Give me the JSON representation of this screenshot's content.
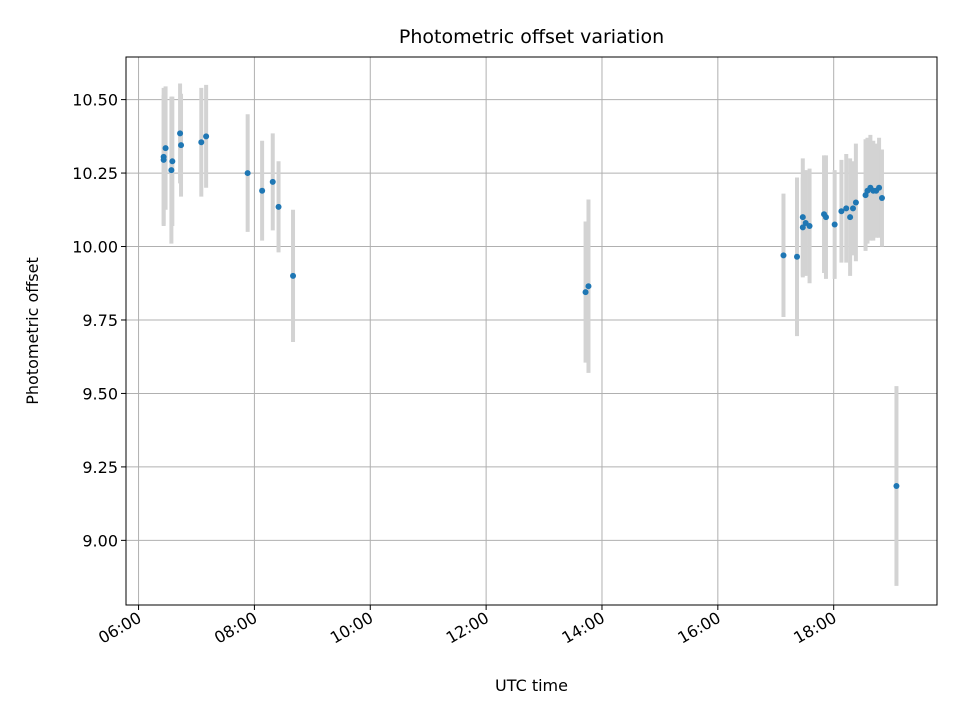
{
  "chart_data": {
    "type": "scatter",
    "title": "Photometric offset variation",
    "xlabel": "UTC time",
    "ylabel": "Photometric offset",
    "xlim": [
      "05:47",
      "19:47"
    ],
    "ylim": [
      8.78,
      10.645
    ],
    "grid": true,
    "x_ticks": [
      "06:00",
      "08:00",
      "10:00",
      "12:00",
      "14:00",
      "16:00",
      "18:00"
    ],
    "y_ticks": [
      "9.00",
      "9.25",
      "9.50",
      "9.75",
      "10.00",
      "10.25",
      "10.50"
    ],
    "colors": {
      "point": "#1f77b4",
      "errorbar": "#d3d3d3",
      "grid": "#b0b0b0"
    },
    "points": [
      {
        "x": "06:26",
        "y": 10.305,
        "err": 0.235
      },
      {
        "x": "06:26",
        "y": 10.295,
        "err": 0.22
      },
      {
        "x": "06:28",
        "y": 10.335,
        "err": 0.21
      },
      {
        "x": "06:34",
        "y": 10.26,
        "err": 0.25
      },
      {
        "x": "06:35",
        "y": 10.29,
        "err": 0.22
      },
      {
        "x": "06:43",
        "y": 10.385,
        "err": 0.17
      },
      {
        "x": "06:44",
        "y": 10.345,
        "err": 0.175
      },
      {
        "x": "07:05",
        "y": 10.355,
        "err": 0.185
      },
      {
        "x": "07:10",
        "y": 10.375,
        "err": 0.175
      },
      {
        "x": "07:53",
        "y": 10.25,
        "err": 0.2
      },
      {
        "x": "08:08",
        "y": 10.19,
        "err": 0.17
      },
      {
        "x": "08:19",
        "y": 10.22,
        "err": 0.165
      },
      {
        "x": "08:25",
        "y": 10.135,
        "err": 0.155
      },
      {
        "x": "08:40",
        "y": 9.9,
        "err": 0.225
      },
      {
        "x": "13:43",
        "y": 9.845,
        "err": 0.24
      },
      {
        "x": "13:46",
        "y": 9.865,
        "err": 0.295
      },
      {
        "x": "17:08",
        "y": 9.97,
        "err": 0.21
      },
      {
        "x": "17:22",
        "y": 9.965,
        "err": 0.27
      },
      {
        "x": "17:28",
        "y": 10.1,
        "err": 0.2
      },
      {
        "x": "17:28",
        "y": 10.065,
        "err": 0.17
      },
      {
        "x": "17:31",
        "y": 10.08,
        "err": 0.18
      },
      {
        "x": "17:35",
        "y": 10.07,
        "err": 0.195
      },
      {
        "x": "17:50",
        "y": 10.11,
        "err": 0.2
      },
      {
        "x": "17:52",
        "y": 10.1,
        "err": 0.21
      },
      {
        "x": "18:01",
        "y": 10.075,
        "err": 0.185
      },
      {
        "x": "18:08",
        "y": 10.12,
        "err": 0.175
      },
      {
        "x": "18:13",
        "y": 10.13,
        "err": 0.185
      },
      {
        "x": "18:17",
        "y": 10.1,
        "err": 0.2
      },
      {
        "x": "18:20",
        "y": 10.13,
        "err": 0.16
      },
      {
        "x": "18:23",
        "y": 10.15,
        "err": 0.2
      },
      {
        "x": "18:33",
        "y": 10.175,
        "err": 0.19
      },
      {
        "x": "18:35",
        "y": 10.19,
        "err": 0.18
      },
      {
        "x": "18:38",
        "y": 10.2,
        "err": 0.18
      },
      {
        "x": "18:41",
        "y": 10.19,
        "err": 0.17
      },
      {
        "x": "18:44",
        "y": 10.19,
        "err": 0.16
      },
      {
        "x": "18:47",
        "y": 10.2,
        "err": 0.17
      },
      {
        "x": "18:50",
        "y": 10.165,
        "err": 0.165
      },
      {
        "x": "19:05",
        "y": 9.185,
        "err": 0.34
      }
    ]
  }
}
